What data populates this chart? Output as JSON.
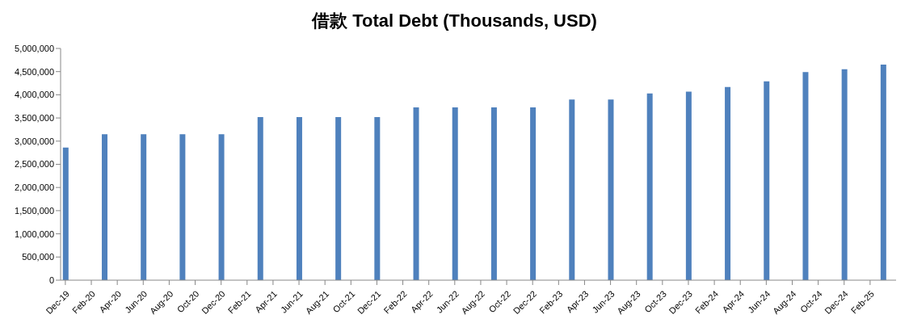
{
  "chart_data": {
    "type": "bar",
    "title": "借款 Total Debt (Thousands, USD)",
    "x": [
      "2019-12",
      "2020-03",
      "2020-06",
      "2020-09",
      "2020-12",
      "2021-03",
      "2021-06",
      "2021-09",
      "2021-12",
      "2022-03",
      "2022-06",
      "2022-09",
      "2022-12",
      "2023-03",
      "2023-06",
      "2023-09",
      "2023-12",
      "2024-03",
      "2024-06",
      "2024-09",
      "2024-12",
      "2025-03"
    ],
    "values": [
      2860000,
      3150000,
      3150000,
      3150000,
      3150000,
      3520000,
      3520000,
      3520000,
      3520000,
      3730000,
      3730000,
      3730000,
      3730000,
      3900000,
      3900000,
      4030000,
      4070000,
      4170000,
      4290000,
      4490000,
      4550000,
      4650000
    ],
    "color": "#4f81bd",
    "xlim": [
      "2019-11-20",
      "2025-04-01"
    ],
    "xticks": [
      {
        "value": "2019-12",
        "label": "Dec-19"
      },
      {
        "value": "2020-02",
        "label": "Feb-20"
      },
      {
        "value": "2020-04",
        "label": "Apr-20"
      },
      {
        "value": "2020-06",
        "label": "Jun-20"
      },
      {
        "value": "2020-08",
        "label": "Aug-20"
      },
      {
        "value": "2020-10",
        "label": "Oct-20"
      },
      {
        "value": "2020-12",
        "label": "Dec-20"
      },
      {
        "value": "2021-02",
        "label": "Feb-21"
      },
      {
        "value": "2021-04",
        "label": "Apr-21"
      },
      {
        "value": "2021-06",
        "label": "Jun-21"
      },
      {
        "value": "2021-08",
        "label": "Aug-21"
      },
      {
        "value": "2021-10",
        "label": "Oct-21"
      },
      {
        "value": "2021-12",
        "label": "Dec-21"
      },
      {
        "value": "2022-02",
        "label": "Feb-22"
      },
      {
        "value": "2022-04",
        "label": "Apr-22"
      },
      {
        "value": "2022-06",
        "label": "Jun-22"
      },
      {
        "value": "2022-08",
        "label": "Aug-22"
      },
      {
        "value": "2022-10",
        "label": "Oct-22"
      },
      {
        "value": "2022-12",
        "label": "Dec-22"
      },
      {
        "value": "2023-02",
        "label": "Feb-23"
      },
      {
        "value": "2023-04",
        "label": "Apr-23"
      },
      {
        "value": "2023-06",
        "label": "Jun-23"
      },
      {
        "value": "2023-08",
        "label": "Aug-23"
      },
      {
        "value": "2023-10",
        "label": "Oct-23"
      },
      {
        "value": "2023-12",
        "label": "Dec-23"
      },
      {
        "value": "2024-02",
        "label": "Feb-24"
      },
      {
        "value": "2024-04",
        "label": "Apr-24"
      },
      {
        "value": "2024-06",
        "label": "Jun-24"
      },
      {
        "value": "2024-08",
        "label": "Aug-24"
      },
      {
        "value": "2024-10",
        "label": "Oct-24"
      },
      {
        "value": "2024-12",
        "label": "Dec-24"
      },
      {
        "value": "2025-02",
        "label": "Feb-25"
      }
    ],
    "ylim": [
      0,
      5000000
    ],
    "yticks": [
      {
        "value": 0,
        "label": "0"
      },
      {
        "value": 500000,
        "label": "500,000"
      },
      {
        "value": 1000000,
        "label": "1,000,000"
      },
      {
        "value": 1500000,
        "label": "1,500,000"
      },
      {
        "value": 2000000,
        "label": "2,000,000"
      },
      {
        "value": 2500000,
        "label": "2,500,000"
      },
      {
        "value": 3000000,
        "label": "3,000,000"
      },
      {
        "value": 3500000,
        "label": "3,500,000"
      },
      {
        "value": 4000000,
        "label": "4,000,000"
      },
      {
        "value": 4500000,
        "label": "4,500,000"
      },
      {
        "value": 5000000,
        "label": "5,000,000"
      }
    ],
    "grid": false,
    "legend": false
  }
}
